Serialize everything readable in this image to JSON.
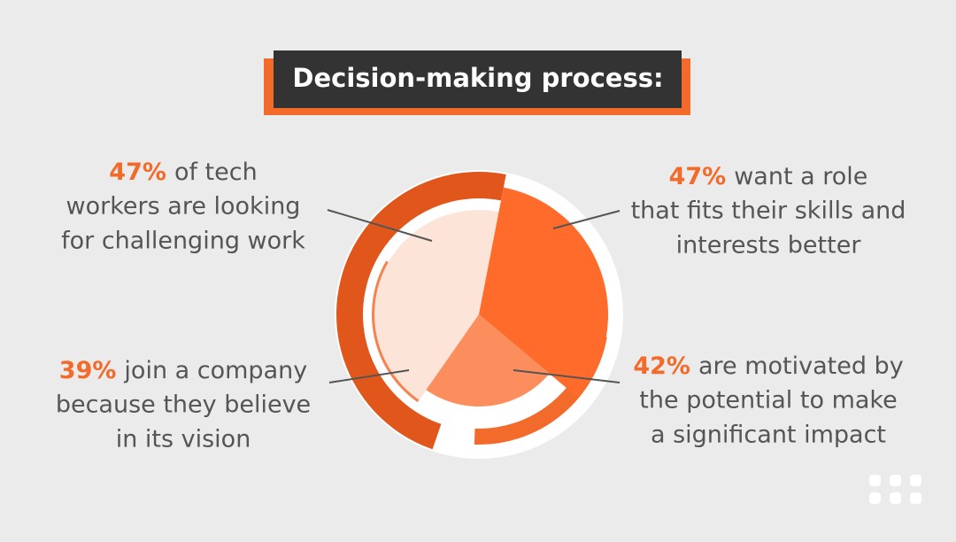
{
  "title": "Decision-making process:",
  "callouts": [
    {
      "percent": "47%",
      "lines": [
        "of tech",
        "workers are looking",
        "for challenging work"
      ]
    },
    {
      "percent": "47%",
      "lines": [
        "want a role",
        "that fits their skills and",
        "interests better"
      ]
    },
    {
      "percent": "39%",
      "lines": [
        "join a company",
        "because they believe",
        "in its vision"
      ]
    },
    {
      "percent": "42%",
      "lines": [
        "are motivated by",
        "the potential to make",
        "a significant impact"
      ]
    }
  ]
}
